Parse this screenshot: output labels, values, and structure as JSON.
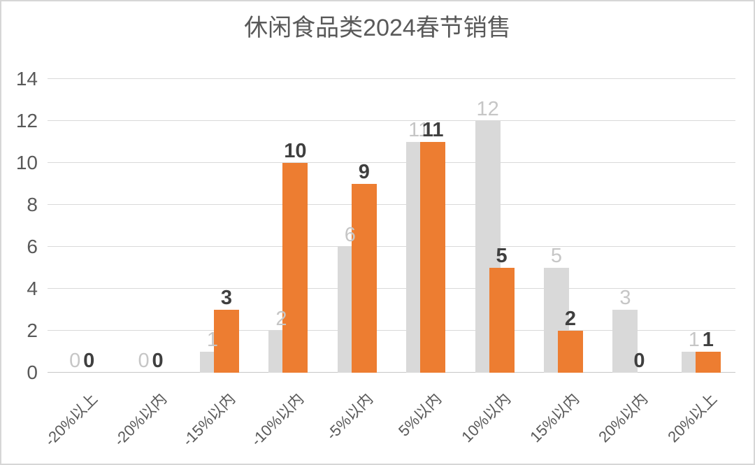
{
  "chart_data": {
    "type": "bar",
    "title": "休闲食品类2024春节销售",
    "title_color": "#595959",
    "categories": [
      "-20%以上",
      "-20%以内",
      "-15%以内",
      "-10%以内",
      "-5%以内",
      "5%以内",
      "10%以内",
      "15%以内",
      "20%以内",
      "20%以上"
    ],
    "series": [
      {
        "name": "gray",
        "color": "#d9d9d9",
        "label_color": "#c6c6c6",
        "label_bold": false,
        "values": [
          0,
          0,
          1,
          2,
          6,
          11,
          12,
          5,
          3,
          1
        ]
      },
      {
        "name": "orange",
        "color": "#ed7d31",
        "label_color": "#3f3f3f",
        "label_bold": true,
        "values": [
          0,
          0,
          3,
          10,
          9,
          11,
          5,
          2,
          0,
          1
        ]
      }
    ],
    "xlabel": "",
    "ylabel": "",
    "ylim": [
      0,
      14
    ],
    "yticks": [
      0,
      2,
      4,
      6,
      8,
      10,
      12,
      14
    ],
    "grid": true,
    "legend": "none",
    "gridline_color": "#d9d9d9",
    "axis_text_color": "#595959"
  }
}
